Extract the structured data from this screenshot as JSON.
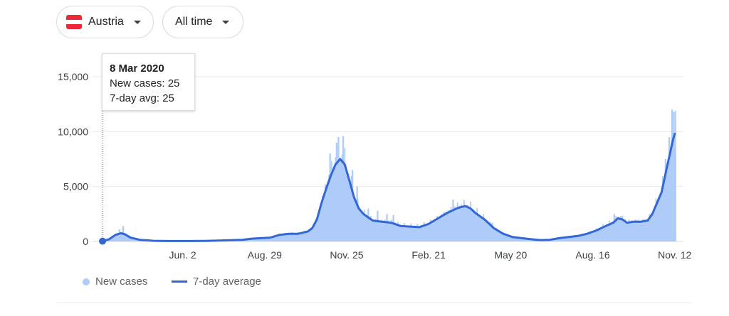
{
  "filters": {
    "country": {
      "label": "Austria",
      "flag_colors": [
        "#ed2939",
        "#ffffff",
        "#ed2939"
      ]
    },
    "range": {
      "label": "All time"
    }
  },
  "tooltip": {
    "date": "8 Mar 2020",
    "new_cases": "New cases: 25",
    "avg": "7-day avg: 25"
  },
  "legend": {
    "cases_label": "New cases",
    "avg_label": "7-day average"
  },
  "colors": {
    "bars": "#aecbfa",
    "line": "#3367d6",
    "grid": "#e8eaed",
    "axis": "#dadce0"
  },
  "chart_data": {
    "type": "area",
    "xlim": [
      0,
      615
    ],
    "ylim": [
      0,
      15000
    ],
    "yticks": [
      0,
      5000,
      10000,
      15000
    ],
    "ytick_labels": [
      "0",
      "5,000",
      "10,000",
      "15,000"
    ],
    "xtick_labels": [
      {
        "label": "Jun. 2",
        "day": 86
      },
      {
        "label": "Aug. 29",
        "day": 174
      },
      {
        "label": "Nov. 25",
        "day": 262
      },
      {
        "label": "Feb. 21",
        "day": 350
      },
      {
        "label": "May 20",
        "day": 438
      },
      {
        "label": "Aug. 16",
        "day": 526
      },
      {
        "label": "Nov. 12",
        "day": 614
      }
    ],
    "series": [
      {
        "name": "7-day average",
        "points": [
          [
            0,
            25
          ],
          [
            7,
            200
          ],
          [
            14,
            600
          ],
          [
            20,
            750
          ],
          [
            24,
            650
          ],
          [
            30,
            350
          ],
          [
            40,
            150
          ],
          [
            55,
            60
          ],
          [
            70,
            40
          ],
          [
            90,
            40
          ],
          [
            110,
            50
          ],
          [
            125,
            80
          ],
          [
            140,
            120
          ],
          [
            150,
            150
          ],
          [
            160,
            250
          ],
          [
            170,
            300
          ],
          [
            180,
            350
          ],
          [
            190,
            600
          ],
          [
            200,
            700
          ],
          [
            210,
            700
          ],
          [
            220,
            900
          ],
          [
            225,
            1200
          ],
          [
            230,
            2000
          ],
          [
            235,
            3500
          ],
          [
            240,
            4800
          ],
          [
            245,
            6000
          ],
          [
            250,
            7000
          ],
          [
            255,
            7500
          ],
          [
            260,
            7000
          ],
          [
            265,
            5500
          ],
          [
            270,
            4000
          ],
          [
            275,
            3000
          ],
          [
            280,
            2500
          ],
          [
            285,
            2200
          ],
          [
            290,
            1900
          ],
          [
            300,
            1800
          ],
          [
            310,
            1700
          ],
          [
            320,
            1400
          ],
          [
            330,
            1350
          ],
          [
            340,
            1300
          ],
          [
            350,
            1600
          ],
          [
            360,
            2100
          ],
          [
            370,
            2600
          ],
          [
            380,
            3000
          ],
          [
            385,
            3150
          ],
          [
            390,
            3200
          ],
          [
            395,
            3000
          ],
          [
            400,
            2600
          ],
          [
            410,
            2000
          ],
          [
            420,
            1200
          ],
          [
            430,
            700
          ],
          [
            440,
            400
          ],
          [
            450,
            300
          ],
          [
            460,
            200
          ],
          [
            470,
            120
          ],
          [
            480,
            150
          ],
          [
            490,
            300
          ],
          [
            500,
            400
          ],
          [
            510,
            500
          ],
          [
            520,
            700
          ],
          [
            530,
            1000
          ],
          [
            540,
            1400
          ],
          [
            548,
            1700
          ],
          [
            553,
            2100
          ],
          [
            558,
            2000
          ],
          [
            563,
            1700
          ],
          [
            570,
            1800
          ],
          [
            578,
            1800
          ],
          [
            585,
            1900
          ],
          [
            590,
            2500
          ],
          [
            595,
            3500
          ],
          [
            600,
            4500
          ],
          [
            605,
            6500
          ],
          [
            609,
            8000
          ],
          [
            612,
            9200
          ],
          [
            614,
            9800
          ]
        ]
      },
      {
        "name": "New cases",
        "spikes": [
          [
            18,
            1100
          ],
          [
            22,
            1400
          ],
          [
            244,
            8000
          ],
          [
            251,
            9000
          ],
          [
            253,
            9500
          ],
          [
            258,
            9600
          ],
          [
            268,
            6500
          ],
          [
            273,
            5000
          ],
          [
            285,
            3000
          ],
          [
            295,
            2800
          ],
          [
            305,
            2500
          ],
          [
            312,
            2400
          ],
          [
            376,
            3800
          ],
          [
            388,
            3500
          ],
          [
            418,
            1700
          ],
          [
            549,
            2500
          ],
          [
            556,
            2300
          ],
          [
            600,
            5000
          ],
          [
            604,
            7500
          ],
          [
            608,
            9500
          ],
          [
            611,
            12000
          ],
          [
            613,
            11800
          ]
        ]
      }
    ]
  }
}
